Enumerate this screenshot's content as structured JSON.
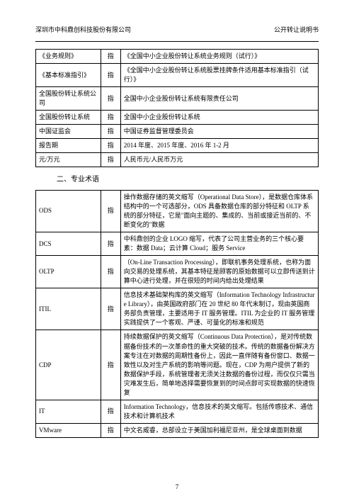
{
  "header": {
    "left": "深圳市中科鼎创科技股份有限公司",
    "right": "公开转让说明书"
  },
  "table1": {
    "midChar": "指",
    "rows": [
      {
        "term": "《业务规则》",
        "def": "《全国中小企业股份转让系统业务规则（试行）》"
      },
      {
        "term": "《基本标准指引》",
        "def": "《全国中小企业股份转让系统股票挂牌条件适用基本标准指引（试行）》"
      },
      {
        "term": "全国股份转让系统公司",
        "def": "全国中小企业股份转让系统有限责任公司"
      },
      {
        "term": "全国股份转让系统",
        "def": "全国中小企业股份转让系统"
      },
      {
        "term": "中国证监会",
        "def": "中国证券监督管理委员会"
      },
      {
        "term": "报告期",
        "def": "2014 年度、2015 年度、2016 年 1-2 月"
      },
      {
        "term": "元/万元",
        "def": "人民币元/人民币万元"
      }
    ]
  },
  "sectionTitle": "二、专业术语",
  "table2": {
    "midChar": "指",
    "rows": [
      {
        "term": "ODS",
        "def": "操作数据存储的英文缩写（Operational Data Store），是数据仓库体系结构中的一个可选部分，ODS 具备数据仓库的部分特征和 OLTP 系统的部分特征，它是\"面向主题的、集成的、当前或接近当前的、不断变化的\"数据"
      },
      {
        "term": "DCS",
        "def": "中科鼎创的企业 LOGO 缩写，代表了公司主营业务的三个核心要素：数据 Data；云计算 Cloud；服务 Service"
      },
      {
        "term": "OLTP",
        "def": "（On-Line Transaction Processing），即联机事务处理系统，也称为面向交易的处理系统，其基本特征是顾客的原始数据可以立即传送到计算中心进行处理，并在很短的时间内给出处理结果"
      },
      {
        "term": "ITIL",
        "def": "信息技术基础架构库的英文缩写（Information Technology Infrastructure Library），由英国政府部门在 20 世纪 80 年代末制订，现由英国商务部负责管理，主要适用于 IT 服务管理。ITIL 为企业的 IT 服务管理实践提供了一个客观、严谨、可量化的标准和规范"
      },
      {
        "term": "CDP",
        "def": "持续数据保护的英文缩写（Continuous Data Protection），是对传统数据备份技术的一次革命性的重大突破的技术。传统的数据备份解决方案专注在对数据的周期性备份上，因此一直伴随有备份窗口、数据一致性以及对生产系统的影响等问题。现在，CDP 为用户提供了新的数据保护手段，系统管理者无须关注数据的备份过程，而仅仅只需当灾难发生后，简单地选择需要恢复到的时间点即可实现数据的快速恢复"
      },
      {
        "term": "IT",
        "def": "Information Technology，信息技术的英文缩写。包括传感技术、通信技术和计算机技术"
      },
      {
        "term": "VMware",
        "def": "中文名威睿，总部设立于美国加利福尼亚州，是全球桌面到数据"
      }
    ]
  },
  "pageno": "7"
}
